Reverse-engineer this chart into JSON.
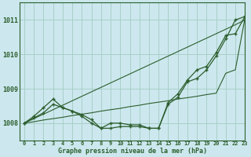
{
  "xlabel": "Graphe pression niveau de la mer (hPa)",
  "background_color": "#cce8ee",
  "grid_color": "#a8cfc8",
  "line_color": "#2d5e2d",
  "ylim": [
    1007.5,
    1011.5
  ],
  "xlim": [
    -0.5,
    23
  ],
  "yticks": [
    1008,
    1009,
    1010,
    1011
  ],
  "xtick_labels": [
    "0",
    "1",
    "2",
    "3",
    "4",
    "5",
    "6",
    "7",
    "8",
    "9",
    "10",
    "11",
    "12",
    "13",
    "14",
    "15",
    "16",
    "17",
    "18",
    "19",
    "20",
    "21",
    "22",
    "23"
  ],
  "series1": [
    1008.0,
    1008.15,
    1008.3,
    1008.55,
    1008.45,
    1008.35,
    1008.2,
    1008.0,
    1007.85,
    1007.85,
    1007.9,
    1007.9,
    1007.9,
    1007.85,
    1007.85,
    1008.55,
    1008.75,
    1009.2,
    1009.3,
    1009.55,
    1009.95,
    1010.45,
    1011.0,
    1011.1
  ],
  "series2_straight": [
    1008.0,
    1008.13,
    1008.26,
    1008.39,
    1008.52,
    1008.65,
    1008.78,
    1008.91,
    1009.04,
    1009.17,
    1009.3,
    1009.43,
    1009.56,
    1009.69,
    1009.82,
    1009.95,
    1010.08,
    1010.21,
    1010.34,
    1010.47,
    1010.6,
    1010.73,
    1010.86,
    1011.0
  ],
  "series3_straight2": [
    1008.0,
    1008.04,
    1008.09,
    1008.13,
    1008.17,
    1008.22,
    1008.26,
    1008.3,
    1008.35,
    1008.39,
    1008.43,
    1008.48,
    1008.52,
    1008.57,
    1008.61,
    1008.65,
    1008.7,
    1008.74,
    1008.78,
    1008.83,
    1008.87,
    1009.45,
    1009.55,
    1011.05
  ],
  "series4_zigzag": [
    1008.0,
    1008.2,
    1008.45,
    1008.7,
    1008.45,
    1008.35,
    1008.25,
    1008.1,
    1007.85,
    1008.0,
    1008.0,
    1007.95,
    1007.95,
    1007.85,
    1007.85,
    1008.6,
    1008.85,
    1009.25,
    1009.55,
    1009.65,
    1010.05,
    1010.55,
    1010.6,
    1011.1
  ]
}
